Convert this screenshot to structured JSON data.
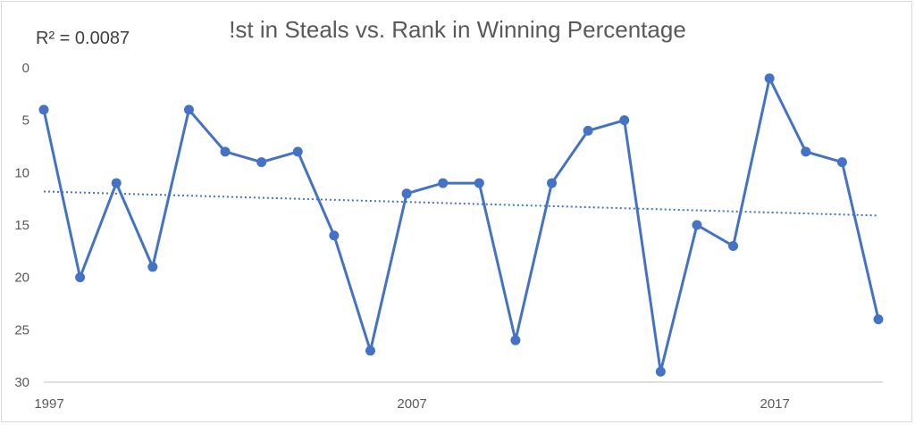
{
  "chart_data": {
    "type": "line",
    "title": "!st in Steals vs. Rank in Winning Percentage",
    "annotation": "R² = 0.0087",
    "x": [
      1997,
      1998,
      1999,
      2000,
      2001,
      2002,
      2003,
      2004,
      2005,
      2006,
      2007,
      2008,
      2009,
      2010,
      2011,
      2012,
      2013,
      2014,
      2015,
      2016,
      2017,
      2018,
      2019,
      2020
    ],
    "series": [
      {
        "values": [
          4,
          20,
          11,
          19,
          4,
          8,
          9,
          8,
          16,
          27,
          12,
          11,
          11,
          26,
          11,
          6,
          5,
          29,
          15,
          17,
          1,
          8,
          9,
          24
        ]
      }
    ],
    "trendline": {
      "type": "linear",
      "start": 11.8,
      "end": 14.1,
      "style": "dotted"
    },
    "x_ticks": [
      "1997",
      "2007",
      "2017"
    ],
    "y_ticks": [
      "0",
      "5",
      "10",
      "15",
      "20",
      "25",
      "30"
    ],
    "ylim": [
      0,
      30
    ],
    "y_reversed": true,
    "grid": false,
    "legend": "none",
    "colors": {
      "series": "#4472c4",
      "axis": "#bfbfbf",
      "text": "#595959"
    }
  }
}
